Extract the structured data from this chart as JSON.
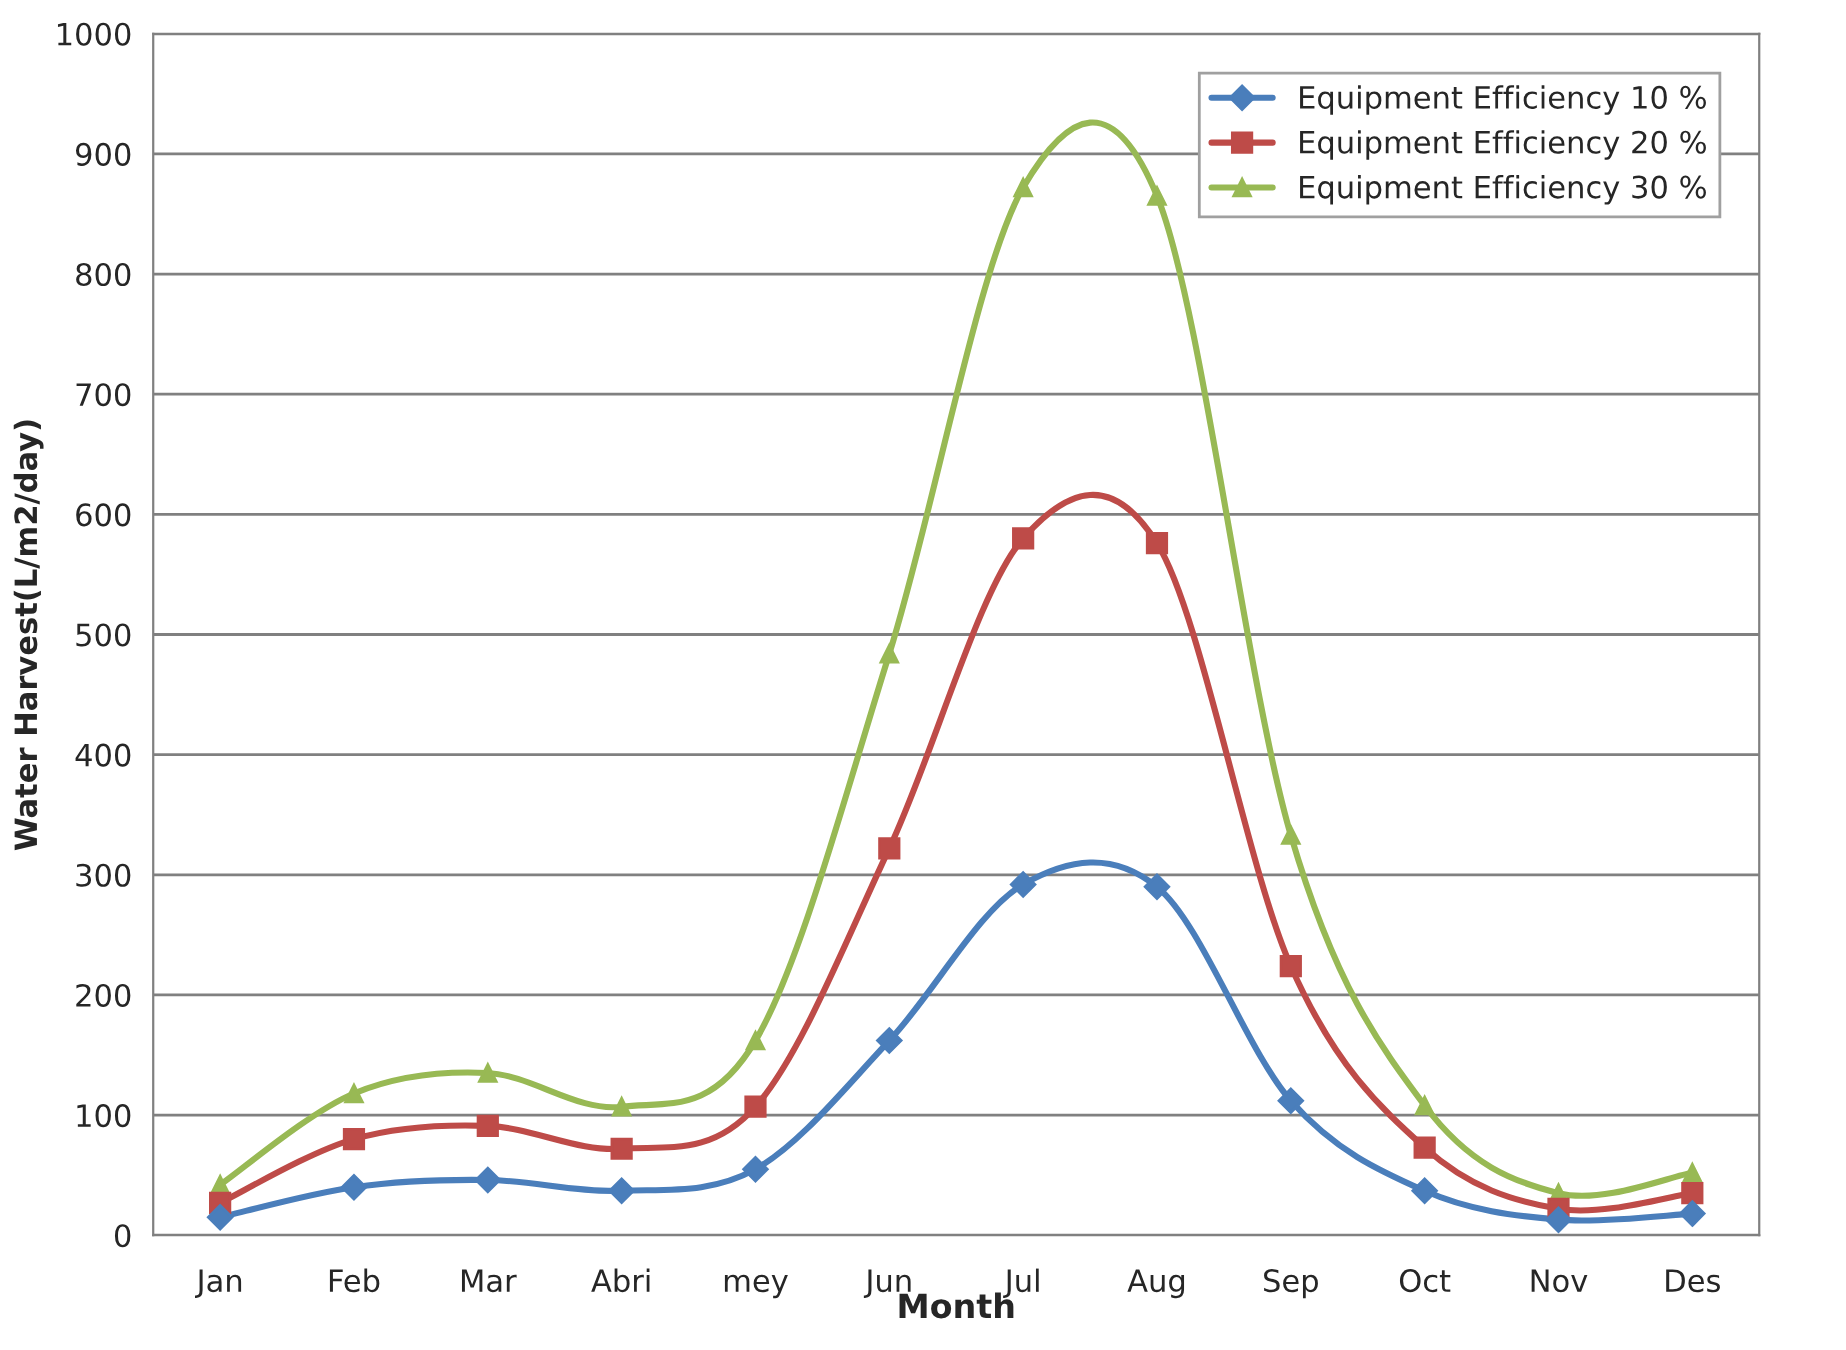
{
  "chart_data": {
    "type": "line",
    "xlabel": "Month",
    "ylabel": "Water Harvest(L/m2/day)",
    "categories": [
      "Jan",
      "Feb",
      "Mar",
      "Abri",
      "mey",
      "Jun",
      "Jul",
      "Aug",
      "Sep",
      "Oct",
      "Nov",
      "Des"
    ],
    "series": [
      {
        "name": "Equipment Efficiency 10 %",
        "color": "#4a7ebb",
        "marker": "diamond",
        "values": [
          15,
          40,
          46,
          37,
          55,
          162,
          292,
          290,
          112,
          37,
          13,
          18
        ]
      },
      {
        "name": "Equipment Efficiency 20 %",
        "color": "#be4b48",
        "marker": "square",
        "values": [
          27,
          80,
          91,
          72,
          107,
          322,
          580,
          576,
          224,
          73,
          22,
          35
        ]
      },
      {
        "name": "Equipment Efficiency 30 %",
        "color": "#98b954",
        "marker": "triangle",
        "values": [
          42,
          118,
          135,
          107,
          162,
          484,
          872,
          865,
          333,
          108,
          35,
          52
        ]
      }
    ],
    "ylim": [
      0,
      1000
    ],
    "yticks": [
      0,
      100,
      200,
      300,
      400,
      500,
      600,
      700,
      800,
      900,
      1000
    ],
    "grid": "y",
    "legend": "top right",
    "line_style": "solid"
  }
}
